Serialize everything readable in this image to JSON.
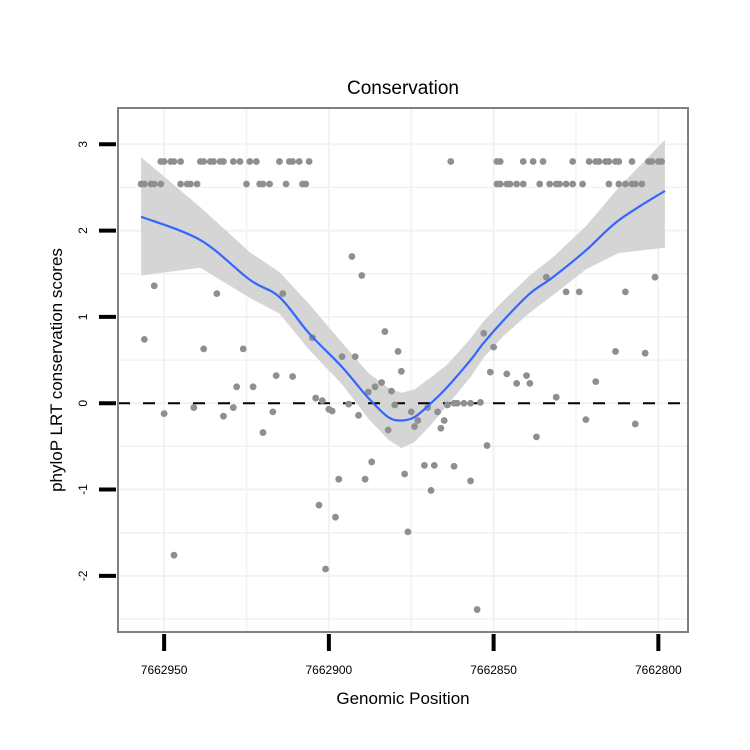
{
  "chart_data": {
    "type": "scatter",
    "title": "Conservation",
    "xlabel": "Genomic Position",
    "ylabel": "phyloP LRT conservation scores",
    "x_reversed": true,
    "xlim": [
      7662964,
      7662791
    ],
    "ylim": [
      -2.65,
      3.42
    ],
    "xticks": [
      7662950,
      7662900,
      7662850,
      7662800
    ],
    "xtick_labels": [
      "7662950",
      "7662900",
      "7662850",
      "7662800"
    ],
    "yticks": [
      -2,
      -1,
      0,
      1,
      2,
      3
    ],
    "ytick_labels": [
      "-2",
      "-1",
      "0",
      "1",
      "2",
      "3"
    ],
    "grid": true,
    "reference_line": {
      "y": 0,
      "style": "dashed"
    },
    "colors": {
      "points": "#8f8f8f",
      "smooth": "#3366ff",
      "band": "#d3d3d3",
      "border": "#808080"
    },
    "points": {
      "pos": [
        7662951,
        7662950,
        7662948,
        7662947,
        7662945,
        7662939,
        7662938,
        7662936,
        7662935,
        7662933,
        7662932,
        7662929,
        7662927,
        7662924,
        7662922,
        7662915,
        7662912,
        7662911,
        7662909,
        7662906,
        7662863,
        7662849,
        7662848,
        7662841,
        7662838,
        7662835,
        7662826,
        7662821,
        7662819,
        7662818,
        7662816,
        7662815,
        7662813,
        7662812,
        7662808,
        7662803,
        7662802,
        7662800,
        7662799,
        7662957,
        7662956,
        7662954,
        7662953,
        7662951,
        7662945,
        7662943,
        7662942,
        7662940,
        7662925,
        7662921,
        7662920,
        7662918,
        7662913,
        7662908,
        7662907,
        7662849,
        7662848,
        7662846,
        7662845,
        7662843,
        7662841,
        7662836,
        7662833,
        7662831,
        7662830,
        7662828,
        7662826,
        7662823,
        7662815,
        7662812,
        7662810,
        7662808,
        7662807,
        7662805,
        7662956,
        7662953,
        7662950,
        7662947,
        7662941,
        7662938,
        7662934,
        7662932,
        7662929,
        7662928,
        7662926,
        7662923,
        7662920,
        7662917,
        7662916,
        7662914,
        7662911,
        7662905,
        7662904,
        7662903,
        7662902,
        7662901,
        7662900,
        7662899,
        7662898,
        7662897,
        7662896,
        7662894,
        7662893,
        7662892,
        7662891,
        7662890,
        7662889,
        7662888,
        7662887,
        7662886,
        7662884,
        7662883,
        7662882,
        7662881,
        7662880,
        7662879,
        7662878,
        7662877,
        7662876,
        7662875,
        7662874,
        7662873,
        7662871,
        7662870,
        7662869,
        7662868,
        7662867,
        7662866,
        7662865,
        7662864,
        7662862,
        7662862,
        7662861,
        7662859,
        7662857,
        7662857,
        7662855,
        7662854,
        7662853,
        7662852,
        7662851,
        7662850,
        7662846,
        7662843,
        7662840,
        7662839,
        7662837,
        7662834,
        7662831,
        7662828,
        7662824,
        7662822,
        7662819,
        7662813,
        7662810,
        7662807,
        7662804,
        7662801
      ],
      "score": [
        2.8,
        2.8,
        2.8,
        2.8,
        2.8,
        2.8,
        2.8,
        2.8,
        2.8,
        2.8,
        2.8,
        2.8,
        2.8,
        2.8,
        2.8,
        2.8,
        2.8,
        2.8,
        2.8,
        2.8,
        2.8,
        2.8,
        2.8,
        2.8,
        2.8,
        2.8,
        2.8,
        2.8,
        2.8,
        2.8,
        2.8,
        2.8,
        2.8,
        2.8,
        2.8,
        2.8,
        2.8,
        2.8,
        2.8,
        2.54,
        2.54,
        2.54,
        2.54,
        2.54,
        2.54,
        2.54,
        2.54,
        2.54,
        2.54,
        2.54,
        2.54,
        2.54,
        2.54,
        2.54,
        2.54,
        2.54,
        2.54,
        2.54,
        2.54,
        2.54,
        2.54,
        2.54,
        2.54,
        2.54,
        2.54,
        2.54,
        2.54,
        2.54,
        2.54,
        2.54,
        2.54,
        2.54,
        2.54,
        2.54,
        0.74,
        1.36,
        -0.12,
        -1.76,
        -0.05,
        0.63,
        1.27,
        -0.15,
        -0.05,
        0.19,
        0.63,
        0.19,
        -0.34,
        -0.1,
        0.32,
        1.27,
        0.31,
        0.76,
        0.06,
        -1.18,
        0.03,
        -1.92,
        -0.07,
        -0.09,
        -1.32,
        -0.88,
        0.54,
        -0.01,
        1.7,
        0.54,
        -0.14,
        1.48,
        -0.88,
        0.13,
        -0.68,
        0.19,
        0.24,
        0.83,
        -0.31,
        0.14,
        -0.02,
        0.6,
        0.37,
        -0.82,
        -1.49,
        -0.1,
        -0.27,
        -0.2,
        -0.72,
        -0.05,
        -1.01,
        -0.72,
        -0.1,
        -0.29,
        -0.2,
        -0.02,
        -0.73,
        0.0,
        0.0,
        0.0,
        0.0,
        -0.9,
        -2.39,
        0.01,
        0.81,
        -0.49,
        0.36,
        0.65,
        0.34,
        0.23,
        0.32,
        0.23,
        -0.39,
        1.46,
        0.07,
        1.29,
        1.29,
        -0.19,
        0.25,
        0.6,
        1.29,
        -0.24,
        0.58,
        1.46
      ]
    },
    "smooth": {
      "pos": [
        7662957,
        7662939,
        7662924,
        7662915,
        7662906,
        7662896,
        7662888,
        7662882,
        7662878,
        7662874,
        7662869,
        7662864,
        7662857,
        7662853,
        7662847,
        7662839,
        7662832,
        7662822,
        7662812,
        7662798
      ],
      "fit": [
        2.16,
        1.89,
        1.43,
        1.23,
        0.81,
        0.42,
        0.06,
        -0.16,
        -0.2,
        -0.16,
        0.0,
        0.19,
        0.5,
        0.7,
        0.96,
        1.27,
        1.46,
        1.77,
        2.12,
        2.46
      ],
      "lower": [
        1.48,
        1.57,
        1.22,
        1.04,
        0.62,
        0.22,
        -0.18,
        -0.42,
        -0.52,
        -0.45,
        -0.25,
        -0.02,
        0.3,
        0.53,
        0.78,
        1.05,
        1.25,
        1.55,
        1.74,
        1.8
      ],
      "upper": [
        2.85,
        2.27,
        1.75,
        1.52,
        1.15,
        0.7,
        0.35,
        0.18,
        0.12,
        0.16,
        0.3,
        0.45,
        0.75,
        0.95,
        1.19,
        1.48,
        1.69,
        2.05,
        2.5,
        3.05
      ]
    }
  }
}
